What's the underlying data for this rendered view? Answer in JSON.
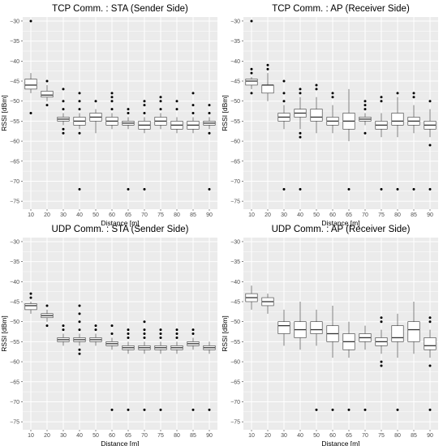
{
  "chart_data": [
    {
      "type": "box",
      "title": "TCP Comm. : STA (Sender Side)",
      "xlabel": "Distance [m]",
      "ylabel": "RSSI [dBm]",
      "categories": [
        "10",
        "20",
        "30",
        "40",
        "50",
        "60",
        "65",
        "70",
        "75",
        "80",
        "85",
        "90"
      ],
      "ylim": [
        -77,
        -29
      ],
      "yticks": [
        -30,
        -35,
        -40,
        -45,
        -50,
        -55,
        -60,
        -65,
        -70,
        -75
      ],
      "grid": true,
      "boxes": [
        {
          "q1": -47,
          "median": -46,
          "q3": -44.5,
          "low": -48,
          "high": -43,
          "outliers": [
            -30,
            -53
          ]
        },
        {
          "q1": -49,
          "median": -48.5,
          "q3": -47.5,
          "low": -50,
          "high": -46,
          "outliers": [
            -45,
            -51
          ]
        },
        {
          "q1": -55,
          "median": -54.5,
          "q3": -54,
          "low": -56,
          "high": -53,
          "outliers": [
            -47,
            -50,
            -52,
            -57,
            -58
          ]
        },
        {
          "q1": -56,
          "median": -55,
          "q3": -54,
          "low": -57,
          "high": -53,
          "outliers": [
            -48,
            -50,
            -52,
            -58,
            -72
          ]
        },
        {
          "q1": -55,
          "median": -54,
          "q3": -53,
          "low": -58,
          "high": -52,
          "outliers": [
            -50
          ]
        },
        {
          "q1": -56,
          "median": -55,
          "q3": -54,
          "low": -57,
          "high": -53,
          "outliers": [
            -48,
            -49,
            -50,
            -52
          ]
        },
        {
          "q1": -56,
          "median": -55.5,
          "q3": -55,
          "low": -57,
          "high": -54,
          "outliers": [
            -52,
            -53,
            -72
          ]
        },
        {
          "q1": -57,
          "median": -56,
          "q3": -55,
          "low": -58,
          "high": -54,
          "outliers": [
            -50,
            -51,
            -53,
            -72
          ]
        },
        {
          "q1": -56,
          "median": -55,
          "q3": -54,
          "low": -57,
          "high": -53,
          "outliers": [
            -49,
            -50,
            -52
          ]
        },
        {
          "q1": -57,
          "median": -56,
          "q3": -55,
          "low": -58,
          "high": -54,
          "outliers": [
            -50,
            -52
          ]
        },
        {
          "q1": -57,
          "median": -56,
          "q3": -55,
          "low": -58,
          "high": -54,
          "outliers": [
            -48,
            -51,
            -53
          ]
        },
        {
          "q1": -56,
          "median": -55.5,
          "q3": -55,
          "low": -57,
          "high": -54,
          "outliers": [
            -51,
            -53,
            -58,
            -72
          ]
        }
      ]
    },
    {
      "type": "box",
      "title": "TCP Comm. : AP (Receiver Side)",
      "xlabel": "Distance [m]",
      "ylabel": "RSSI [dBm]",
      "categories": [
        "10",
        "20",
        "30",
        "40",
        "50",
        "60",
        "65",
        "70",
        "75",
        "80",
        "85",
        "90"
      ],
      "ylim": [
        -77,
        -29
      ],
      "yticks": [
        -30,
        -35,
        -40,
        -45,
        -50,
        -55,
        -60,
        -65,
        -70,
        -75
      ],
      "grid": true,
      "boxes": [
        {
          "q1": -46,
          "median": -45,
          "q3": -44.5,
          "low": -47,
          "high": -44,
          "outliers": [
            -30,
            -42,
            -43,
            -48
          ]
        },
        {
          "q1": -48,
          "median": -46,
          "q3": -46,
          "low": -50,
          "high": -43,
          "outliers": [
            -41,
            -42
          ]
        },
        {
          "q1": -55,
          "median": -54,
          "q3": -53,
          "low": -57,
          "high": -51,
          "outliers": [
            -45,
            -48,
            -50,
            -72
          ]
        },
        {
          "q1": -54,
          "median": -53,
          "q3": -52,
          "low": -57,
          "high": -49,
          "outliers": [
            -47,
            -48,
            -58,
            -59,
            -72
          ]
        },
        {
          "q1": -55,
          "median": -54,
          "q3": -52,
          "low": -58,
          "high": -49,
          "outliers": [
            -46,
            -47
          ]
        },
        {
          "q1": -56,
          "median": -55,
          "q3": -54,
          "low": -58,
          "high": -51,
          "outliers": [
            -48,
            -49
          ]
        },
        {
          "q1": -57,
          "median": -55,
          "q3": -53,
          "low": -60,
          "high": -47,
          "outliers": [
            -72
          ]
        },
        {
          "q1": -55,
          "median": -54.5,
          "q3": -54,
          "low": -56,
          "high": -53,
          "outliers": [
            -50,
            -51,
            -52,
            -58
          ]
        },
        {
          "q1": -57,
          "median": -56,
          "q3": -55,
          "low": -59,
          "high": -53,
          "outliers": [
            -49,
            -50,
            -72
          ]
        },
        {
          "q1": -56,
          "median": -55,
          "q3": -53,
          "low": -59,
          "high": -49,
          "outliers": [
            -48,
            -72
          ]
        },
        {
          "q1": -56,
          "median": -55,
          "q3": -54,
          "low": -58,
          "high": -51,
          "outliers": [
            -48,
            -49,
            -72
          ]
        },
        {
          "q1": -57,
          "median": -56,
          "q3": -55,
          "low": -59,
          "high": -52,
          "outliers": [
            -50,
            -61,
            -72
          ]
        }
      ]
    },
    {
      "type": "box",
      "title": "UDP Comm. : STA (Sender Side)",
      "xlabel": "Distance [m]",
      "ylabel": "RSSI [dBm]",
      "categories": [
        "10",
        "20",
        "30",
        "40",
        "50",
        "60",
        "65",
        "70",
        "75",
        "80",
        "85",
        "90"
      ],
      "ylim": [
        -77,
        -29
      ],
      "yticks": [
        -30,
        -35,
        -40,
        -45,
        -50,
        -55,
        -60,
        -65,
        -70,
        -75
      ],
      "grid": true,
      "boxes": [
        {
          "q1": -47,
          "median": -46,
          "q3": -45.5,
          "low": -48,
          "high": -45,
          "outliers": [
            -43,
            -44
          ]
        },
        {
          "q1": -49,
          "median": -48.5,
          "q3": -48,
          "low": -50,
          "high": -47,
          "outliers": [
            -46,
            -51
          ]
        },
        {
          "q1": -55,
          "median": -54.5,
          "q3": -54,
          "low": -56,
          "high": -53,
          "outliers": [
            -51,
            -52
          ]
        },
        {
          "q1": -55,
          "median": -54.5,
          "q3": -54,
          "low": -56,
          "high": -53,
          "outliers": [
            -46,
            -48,
            -50,
            -52,
            -57,
            -58
          ]
        },
        {
          "q1": -55,
          "median": -54.5,
          "q3": -54,
          "low": -56,
          "high": -53,
          "outliers": [
            -51,
            -52
          ]
        },
        {
          "q1": -56,
          "median": -55.5,
          "q3": -55,
          "low": -57,
          "high": -54,
          "outliers": [
            -51,
            -53,
            -72
          ]
        },
        {
          "q1": -57,
          "median": -56.5,
          "q3": -56,
          "low": -58,
          "high": -55,
          "outliers": [
            -52,
            -53,
            -54,
            -72
          ]
        },
        {
          "q1": -57,
          "median": -56.5,
          "q3": -56,
          "low": -58,
          "high": -55,
          "outliers": [
            -50,
            -52,
            -53,
            -54,
            -72
          ]
        },
        {
          "q1": -57,
          "median": -56.5,
          "q3": -56,
          "low": -58,
          "high": -55,
          "outliers": [
            -52,
            -53,
            -54,
            -72
          ]
        },
        {
          "q1": -57,
          "median": -56.5,
          "q3": -56,
          "low": -58,
          "high": -55,
          "outliers": [
            -52,
            -53,
            -54
          ]
        },
        {
          "q1": -56,
          "median": -55.5,
          "q3": -55,
          "low": -57,
          "high": -54,
          "outliers": [
            -52,
            -53,
            -72
          ]
        },
        {
          "q1": -57,
          "median": -56.5,
          "q3": -56,
          "low": -58,
          "high": -55,
          "outliers": [
            -72
          ]
        }
      ]
    },
    {
      "type": "box",
      "title": "UDP Comm. : AP (Receiver Side)",
      "xlabel": "Distance [m]",
      "ylabel": "RSSI [dBm]",
      "categories": [
        "10",
        "20",
        "30",
        "40",
        "50",
        "60",
        "65",
        "70",
        "75",
        "80",
        "85",
        "90"
      ],
      "ylim": [
        -77,
        -29
      ],
      "yticks": [
        -30,
        -35,
        -40,
        -45,
        -50,
        -55,
        -60,
        -65,
        -70,
        -75
      ],
      "grid": true,
      "boxes": [
        {
          "q1": -45,
          "median": -44,
          "q3": -43,
          "low": -47,
          "high": -41,
          "outliers": []
        },
        {
          "q1": -46,
          "median": -45,
          "q3": -44,
          "low": -48,
          "high": -43,
          "outliers": []
        },
        {
          "q1": -53,
          "median": -51,
          "q3": -50,
          "low": -56,
          "high": -47,
          "outliers": []
        },
        {
          "q1": -54,
          "median": -52,
          "q3": -50,
          "low": -57,
          "high": -45,
          "outliers": []
        },
        {
          "q1": -53,
          "median": -52,
          "q3": -50,
          "low": -56,
          "high": -47,
          "outliers": [
            -72
          ]
        },
        {
          "q1": -55,
          "median": -53,
          "q3": -51,
          "low": -59,
          "high": -46,
          "outliers": [
            -72
          ]
        },
        {
          "q1": -57,
          "median": -55,
          "q3": -53,
          "low": -59,
          "high": -50,
          "outliers": [
            -72
          ]
        },
        {
          "q1": -55,
          "median": -54,
          "q3": -53,
          "low": -57,
          "high": -51,
          "outliers": [
            -72
          ]
        },
        {
          "q1": -56,
          "median": -55,
          "q3": -54,
          "low": -58,
          "high": -52,
          "outliers": [
            -49,
            -50,
            -60,
            -61
          ]
        },
        {
          "q1": -55,
          "median": -54,
          "q3": -51,
          "low": -59,
          "high": -48,
          "outliers": [
            -72
          ]
        },
        {
          "q1": -55,
          "median": -52,
          "q3": -50,
          "low": -58,
          "high": -45,
          "outliers": []
        },
        {
          "q1": -57,
          "median": -56,
          "q3": -54,
          "low": -59,
          "high": -52,
          "outliers": [
            -49,
            -50,
            -61,
            -72
          ]
        }
      ]
    }
  ],
  "colors": {
    "panel_background": "#ebebeb",
    "grid_major": "#ffffff",
    "box_fill": "#ffffff",
    "box_stroke": "#333333",
    "point": "#000000",
    "tick_text": "#4d4d4d"
  }
}
